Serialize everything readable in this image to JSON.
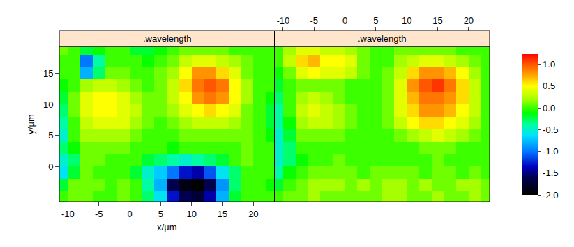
{
  "chart_data": {
    "type": "heatmap",
    "x_label": "x/µm",
    "y_label": "y/µm",
    "x": [
      -11,
      -9,
      -7,
      -5,
      -3,
      -1,
      1,
      3,
      5,
      7,
      9,
      11,
      13,
      15,
      17,
      19,
      21,
      23
    ],
    "y": [
      -5,
      -3,
      -1,
      1,
      3,
      5,
      7,
      9,
      11,
      13,
      15,
      17,
      19
    ],
    "xlim": [
      -11.4,
      23.4
    ],
    "ylim": [
      -5.7,
      19.3
    ],
    "xticks": [
      -10,
      -5,
      0,
      5,
      10,
      15,
      20
    ],
    "yticks": [
      0,
      5,
      10,
      15
    ],
    "colorbar": {
      "range": [
        -2,
        1.25
      ],
      "ticks": [
        {
          "value": -2,
          "label": "-2.0"
        },
        {
          "value": -1.5,
          "label": "-1.5"
        },
        {
          "value": -1,
          "label": "-1.0"
        },
        {
          "value": -0.5,
          "label": "-0.5"
        },
        {
          "value": 0,
          "label": "0.0"
        },
        {
          "value": 0.5,
          "label": "0.5"
        },
        {
          "value": 1,
          "label": "1.0"
        }
      ]
    },
    "panels": [
      {
        "title": ".wavelength",
        "cells": [
          [
            0.0,
            0.1,
            0.1,
            0.0,
            0.0,
            0.1,
            0.0,
            -0.3,
            -0.6,
            -1.3,
            -1.6,
            -1.7,
            -1.4,
            -0.8,
            -0.2,
            0.0,
            0.0,
            0.0
          ],
          [
            -0.2,
            0.1,
            0.1,
            0.1,
            0.0,
            0.1,
            0.0,
            -0.4,
            -0.8,
            -1.6,
            -1.9,
            -2.0,
            -1.6,
            -0.9,
            -0.3,
            0.0,
            0.0,
            -0.1
          ],
          [
            -0.6,
            -0.2,
            0.1,
            0.0,
            0.0,
            0.0,
            -0.2,
            -0.5,
            -0.7,
            -1.0,
            -1.3,
            -1.4,
            -1.1,
            -0.6,
            -0.3,
            0.0,
            0.0,
            0.0
          ],
          [
            -0.5,
            -0.3,
            0.1,
            0.1,
            0.0,
            0.0,
            0.0,
            -0.2,
            -0.3,
            -0.4,
            -0.5,
            -0.4,
            -0.3,
            -0.2,
            0.0,
            0.1,
            0.0,
            0.0
          ],
          [
            -0.3,
            -0.1,
            0.1,
            0.1,
            0.1,
            0.1,
            0.0,
            0.0,
            0.0,
            -0.1,
            0.0,
            0.0,
            0.0,
            0.0,
            0.0,
            0.1,
            0.0,
            0.0
          ],
          [
            -0.5,
            0.0,
            0.2,
            0.2,
            0.2,
            0.2,
            0.1,
            0.0,
            0.0,
            0.0,
            0.1,
            0.1,
            0.1,
            0.1,
            0.1,
            0.1,
            0.0,
            -0.1
          ],
          [
            -0.4,
            0.0,
            0.3,
            0.4,
            0.4,
            0.4,
            0.2,
            0.1,
            0.0,
            0.1,
            0.2,
            0.3,
            0.3,
            0.3,
            0.2,
            0.1,
            0.0,
            -0.2
          ],
          [
            -0.3,
            0.1,
            0.4,
            0.5,
            0.5,
            0.4,
            0.3,
            0.1,
            0.1,
            0.2,
            0.4,
            0.5,
            0.6,
            0.5,
            0.4,
            0.1,
            0.0,
            -0.2
          ],
          [
            -0.2,
            0.1,
            0.4,
            0.5,
            0.5,
            0.4,
            0.2,
            0.1,
            0.1,
            0.3,
            0.5,
            0.8,
            0.9,
            0.8,
            0.5,
            0.2,
            0.0,
            -0.1
          ],
          [
            -0.1,
            0.0,
            0.2,
            0.3,
            0.3,
            0.2,
            0.1,
            0.0,
            0.1,
            0.3,
            0.6,
            0.9,
            1.0,
            0.9,
            0.5,
            0.2,
            0.0,
            0.0
          ],
          [
            0.0,
            0.0,
            -0.8,
            -0.3,
            0.1,
            0.1,
            0.0,
            0.0,
            0.1,
            0.2,
            0.5,
            0.8,
            0.8,
            0.6,
            0.4,
            0.1,
            0.0,
            0.0
          ],
          [
            0.0,
            0.0,
            -1.0,
            -0.4,
            0.0,
            0.0,
            0.0,
            -0.1,
            0.0,
            0.1,
            0.3,
            0.4,
            0.4,
            0.3,
            0.2,
            0.1,
            0.0,
            0.0
          ],
          [
            0.1,
            0.0,
            -0.2,
            -0.1,
            0.0,
            0.0,
            -0.2,
            -0.2,
            -0.1,
            0.0,
            0.1,
            0.1,
            0.1,
            0.1,
            0.0,
            0.0,
            0.0,
            0.0
          ]
        ]
      },
      {
        "title": ".wavelength",
        "cells": [
          [
            0.0,
            0.1,
            0.1,
            0.2,
            0.1,
            0.1,
            0.1,
            0.1,
            0.1,
            0.2,
            0.2,
            0.1,
            0.1,
            0.2,
            0.1,
            0.1,
            0.2,
            0.1
          ],
          [
            -0.2,
            0.0,
            0.1,
            0.2,
            0.2,
            0.2,
            0.1,
            0.2,
            0.1,
            0.2,
            0.2,
            0.1,
            0.2,
            0.1,
            0.1,
            0.2,
            0.2,
            0.1
          ],
          [
            -0.4,
            -0.1,
            0.0,
            0.1,
            0.1,
            0.1,
            0.1,
            0.0,
            0.1,
            0.1,
            0.1,
            0.1,
            0.0,
            0.1,
            0.1,
            0.0,
            0.1,
            0.0
          ],
          [
            -0.5,
            -0.3,
            -0.1,
            0.0,
            0.0,
            0.1,
            0.0,
            0.0,
            0.0,
            0.0,
            0.0,
            0.0,
            0.0,
            0.1,
            0.0,
            0.0,
            0.0,
            0.0
          ],
          [
            -0.5,
            -0.3,
            0.0,
            0.0,
            0.0,
            0.0,
            0.0,
            0.0,
            0.0,
            0.0,
            0.0,
            0.0,
            0.1,
            0.1,
            0.1,
            0.0,
            0.0,
            0.0
          ],
          [
            -0.5,
            -0.2,
            0.1,
            0.1,
            0.1,
            0.1,
            0.0,
            0.0,
            0.0,
            0.0,
            0.1,
            0.2,
            0.3,
            0.4,
            0.3,
            0.2,
            0.1,
            0.0
          ],
          [
            -0.4,
            -0.1,
            0.2,
            0.3,
            0.3,
            0.2,
            0.1,
            0.0,
            0.0,
            0.1,
            0.3,
            0.5,
            0.6,
            0.6,
            0.5,
            0.4,
            0.2,
            0.0
          ],
          [
            -0.4,
            0.0,
            0.3,
            0.4,
            0.3,
            0.2,
            0.1,
            0.0,
            0.0,
            0.1,
            0.4,
            0.6,
            0.8,
            0.8,
            0.7,
            0.5,
            0.3,
            0.0
          ],
          [
            -0.3,
            0.0,
            0.2,
            0.3,
            0.2,
            0.1,
            0.0,
            0.0,
            0.0,
            0.1,
            0.4,
            0.7,
            0.9,
            0.9,
            0.8,
            0.6,
            0.3,
            0.0
          ],
          [
            -0.2,
            0.0,
            0.1,
            0.1,
            0.1,
            0.1,
            0.0,
            0.0,
            0.0,
            0.1,
            0.4,
            0.8,
            1.0,
            1.1,
            0.9,
            0.6,
            0.3,
            0.0
          ],
          [
            -0.1,
            0.1,
            0.4,
            0.5,
            0.4,
            0.4,
            0.3,
            0.1,
            0.0,
            0.1,
            0.3,
            0.6,
            0.8,
            0.8,
            0.7,
            0.5,
            0.2,
            0.0
          ],
          [
            0.0,
            0.3,
            0.6,
            0.7,
            0.5,
            0.5,
            0.4,
            0.1,
            0.0,
            0.0,
            0.2,
            0.3,
            0.4,
            0.4,
            0.3,
            0.2,
            0.1,
            0.0
          ],
          [
            0.0,
            0.2,
            0.4,
            0.4,
            0.3,
            0.3,
            0.2,
            0.1,
            0.0,
            0.0,
            0.1,
            0.1,
            0.1,
            0.1,
            0.1,
            0.0,
            0.0,
            0.0
          ]
        ]
      }
    ]
  }
}
